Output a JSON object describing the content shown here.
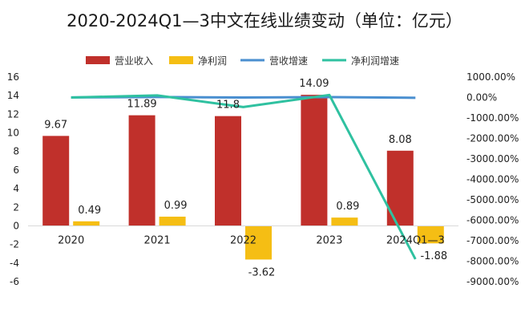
{
  "chart_data": {
    "type": "bar",
    "title": "2020-2024Q1—3中文在线业绩变动（单位：亿元）",
    "categories": [
      "2020",
      "2021",
      "2022",
      "2023",
      "2024Q1—3"
    ],
    "series": [
      {
        "name": "营业收入",
        "kind": "bar",
        "axis": "left",
        "color": "#c0302b",
        "values": [
          9.67,
          11.89,
          11.8,
          14.09,
          8.08
        ],
        "labels": [
          "9.67",
          "11.89",
          "11.8",
          "14.09",
          "8.08"
        ]
      },
      {
        "name": "净利润",
        "kind": "bar",
        "axis": "left",
        "color": "#f5be14",
        "values": [
          0.49,
          0.99,
          -3.62,
          0.89,
          -1.88
        ],
        "labels": [
          "0.49",
          "0.99",
          "-3.62",
          "0.89",
          "-1.88"
        ]
      },
      {
        "name": "营收增速",
        "kind": "line",
        "axis": "right",
        "color": "#4a8fd0",
        "values": [
          5,
          22.96,
          -0.76,
          19.41,
          -15
        ]
      },
      {
        "name": "净利润增速",
        "kind": "line",
        "axis": "right",
        "color": "#2fc1a0",
        "values": [
          0,
          102,
          -467,
          125,
          -7900
        ]
      }
    ],
    "y_left": {
      "min": -6,
      "max": 16,
      "ticks": [
        "-6",
        "-4",
        "-2",
        "0",
        "2",
        "4",
        "6",
        "8",
        "10",
        "12",
        "14",
        "16"
      ]
    },
    "y_right": {
      "min": -9000,
      "max": 1000,
      "ticks": [
        "-9000.00%",
        "-8000.00%",
        "-7000.00%",
        "-6000.00%",
        "-5000.00%",
        "-4000.00%",
        "-3000.00%",
        "-2000.00%",
        "-1000.00%",
        "0.00%",
        "1000.00%"
      ]
    },
    "legend_position": "top-center",
    "grid": false
  }
}
